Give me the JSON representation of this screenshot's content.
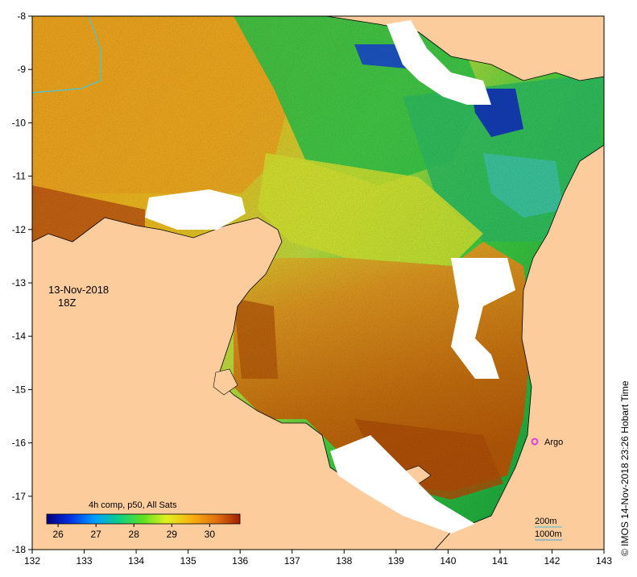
{
  "map": {
    "date_label": "13-Nov-2018",
    "time_label": "18Z",
    "credit": "© IMOS 14-Nov-2018 23:26 Hobart Time",
    "x_ticks": [
      "132",
      "133",
      "134",
      "135",
      "136",
      "137",
      "138",
      "139",
      "140",
      "141",
      "142",
      "143"
    ],
    "y_ticks": [
      "-8",
      "-9",
      "-10",
      "-11",
      "-12",
      "-13",
      "-14",
      "-15",
      "-16",
      "-17",
      "-18"
    ],
    "colorbar": {
      "title": "4h comp, p50, All Sats",
      "ticks": [
        "26",
        "27",
        "28",
        "29",
        "30"
      ],
      "range": [
        25.7,
        30.8
      ]
    },
    "argo_label": "Argo",
    "argo_position": {
      "lon": 141.7,
      "lat": -16.0
    },
    "contours": [
      "200m",
      "1000m"
    ],
    "colors": {
      "land": "#fccc9c",
      "no_data": "#ffffff",
      "warm": "#c0620a",
      "mid": "#f0b418",
      "cool": "#20c040",
      "cold": "#1020c0",
      "argo_marker": "#e040e0",
      "contour_200m": "#40c0e0",
      "contour_1000m": "#40c0e0"
    }
  }
}
